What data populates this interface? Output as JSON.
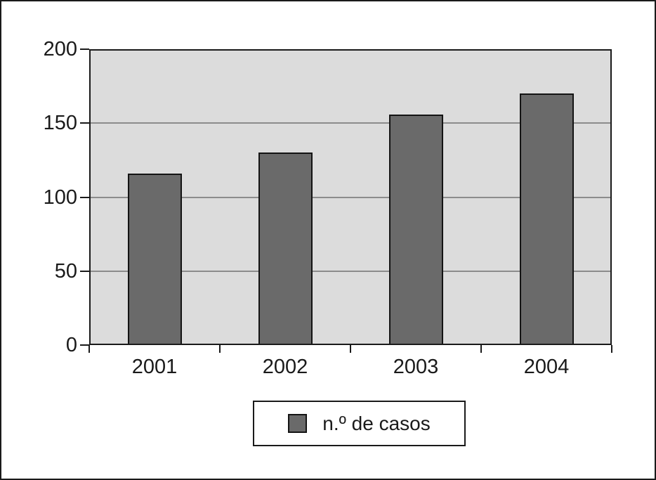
{
  "chart_data": {
    "type": "bar",
    "categories": [
      "2001",
      "2002",
      "2003",
      "2004"
    ],
    "values": [
      116,
      130,
      156,
      170
    ],
    "series_name": "n.º de casos",
    "title": "",
    "xlabel": "",
    "ylabel": "",
    "ylim": [
      0,
      200
    ],
    "yticks": [
      0,
      50,
      100,
      150,
      200
    ],
    "ytick_labels": [
      "0",
      "50",
      "100",
      "150",
      "200"
    ],
    "grid": true,
    "legend_position": "bottom",
    "colors": {
      "bar_fill": "#6a6a6a",
      "bar_border": "#141414",
      "plot_background": "#dcdcdc",
      "gridline": "#8c8c8c",
      "axis": "#1a1a1a",
      "page_background": "#ffffff",
      "text": "#1a1a1a"
    }
  }
}
